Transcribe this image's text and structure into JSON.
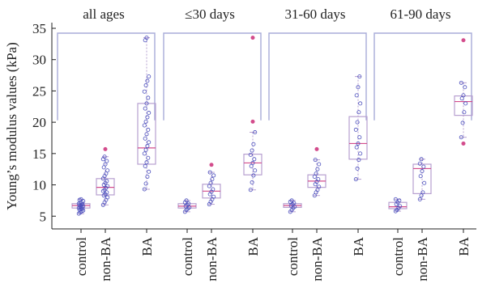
{
  "chart_data": {
    "type": "box",
    "ylabel": "Young’s modulus values (kPa)",
    "ylim": [
      4,
      35
    ],
    "yticks": [
      5,
      10,
      15,
      20,
      25,
      30,
      35
    ],
    "categories": [
      "control",
      "non-BA",
      "BA"
    ],
    "grid": false,
    "colors": {
      "box": "#b7a0d0",
      "median": "#d34c8c",
      "points": "#4b4fbd",
      "outlier": "#d34c8c",
      "bracket": "#a8acd8",
      "axis": "#222222"
    },
    "panels": [
      {
        "title": "all ages",
        "boxes": [
          {
            "category": "control",
            "min": 5.4,
            "q1": 6.3,
            "median": 6.7,
            "q3": 7.0,
            "max": 7.7,
            "outliers": [],
            "points": [
              5.4,
              5.6,
              5.8,
              5.9,
              6.0,
              6.1,
              6.2,
              6.3,
              6.4,
              6.5,
              6.6,
              6.7,
              6.8,
              6.9,
              7.0,
              7.1,
              7.2,
              7.4,
              7.6,
              7.7
            ]
          },
          {
            "category": "non-BA",
            "min": 6.8,
            "q1": 8.4,
            "median": 9.6,
            "q3": 11.0,
            "max": 14.5,
            "outliers": [
              15.7
            ],
            "points": [
              6.8,
              7.2,
              7.6,
              8.0,
              8.3,
              8.5,
              8.8,
              9.0,
              9.2,
              9.5,
              9.8,
              10.0,
              10.3,
              10.6,
              11.0,
              11.4,
              11.8,
              12.3,
              12.8,
              13.3,
              13.8,
              14.1,
              14.5
            ]
          },
          {
            "category": "BA",
            "min": 9.3,
            "q1": 13.3,
            "median": 15.9,
            "q3": 23.0,
            "max": 33.5,
            "outliers": [],
            "points": [
              9.3,
              10.2,
              11.3,
              12.1,
              13.0,
              13.6,
              14.3,
              15.0,
              15.6,
              16.2,
              16.8,
              17.4,
              18.1,
              18.8,
              19.5,
              20.1,
              20.8,
              21.5,
              22.2,
              23.0,
              23.9,
              24.9,
              25.9,
              26.6,
              27.3,
              33.1,
              33.5
            ]
          }
        ]
      },
      {
        "title": "≤30 days",
        "boxes": [
          {
            "category": "control",
            "min": 5.7,
            "q1": 6.3,
            "median": 6.6,
            "q3": 7.0,
            "max": 7.5,
            "outliers": [],
            "points": [
              5.7,
              6.0,
              6.2,
              6.4,
              6.6,
              6.8,
              7.0,
              7.2,
              7.5
            ]
          },
          {
            "category": "non-BA",
            "min": 6.9,
            "q1": 7.9,
            "median": 9.0,
            "q3": 10.1,
            "max": 12.0,
            "outliers": [
              13.2
            ],
            "points": [
              6.9,
              7.3,
              7.7,
              8.1,
              8.5,
              8.9,
              9.3,
              9.8,
              10.3,
              10.9,
              11.5,
              12.0
            ]
          },
          {
            "category": "BA",
            "min": 9.2,
            "q1": 11.6,
            "median": 13.5,
            "q3": 14.9,
            "max": 18.4,
            "outliers": [
              20.1,
              33.5
            ],
            "points": [
              9.2,
              10.4,
              11.5,
              12.3,
              13.0,
              13.5,
              14.1,
              14.8,
              15.5,
              16.5,
              18.4
            ]
          }
        ]
      },
      {
        "title": "31-60 days",
        "boxes": [
          {
            "category": "control",
            "min": 5.7,
            "q1": 6.4,
            "median": 6.7,
            "q3": 7.0,
            "max": 7.5,
            "outliers": [],
            "points": [
              5.7,
              6.0,
              6.3,
              6.5,
              6.7,
              6.9,
              7.1,
              7.3,
              7.5
            ]
          },
          {
            "category": "non-BA",
            "min": 8.3,
            "q1": 9.6,
            "median": 10.6,
            "q3": 11.6,
            "max": 14.0,
            "outliers": [
              15.7
            ],
            "points": [
              8.3,
              8.8,
              9.2,
              9.7,
              10.1,
              10.5,
              10.9,
              11.3,
              11.8,
              12.5,
              13.3,
              14.0
            ]
          },
          {
            "category": "BA",
            "min": 10.9,
            "q1": 14.1,
            "median": 16.6,
            "q3": 20.9,
            "max": 27.3,
            "outliers": [],
            "points": [
              10.9,
              12.6,
              14.0,
              15.0,
              16.0,
              16.6,
              17.6,
              18.8,
              20.0,
              21.6,
              23.0,
              24.3,
              25.6,
              27.3
            ]
          }
        ]
      },
      {
        "title": "61-90 days",
        "boxes": [
          {
            "category": "control",
            "min": 5.8,
            "q1": 6.2,
            "median": 6.5,
            "q3": 7.2,
            "max": 7.7,
            "outliers": [],
            "points": [
              5.8,
              6.0,
              6.3,
              6.6,
              6.9,
              7.2,
              7.5,
              7.7
            ]
          },
          {
            "category": "non-BA",
            "min": 7.7,
            "q1": 8.6,
            "median": 12.6,
            "q3": 13.3,
            "max": 14.1,
            "outliers": [],
            "points": [
              7.7,
              8.3,
              8.8,
              10.3,
              11.4,
              12.2,
              12.9,
              13.4,
              14.1
            ]
          },
          {
            "category": "BA",
            "min": 17.6,
            "q1": 21.1,
            "median": 23.3,
            "q3": 24.2,
            "max": 26.3,
            "outliers": [
              16.6,
              33.1
            ],
            "points": [
              17.6,
              19.9,
              21.6,
              23.0,
              23.8,
              24.3,
              25.6,
              26.3
            ]
          }
        ]
      }
    ]
  }
}
